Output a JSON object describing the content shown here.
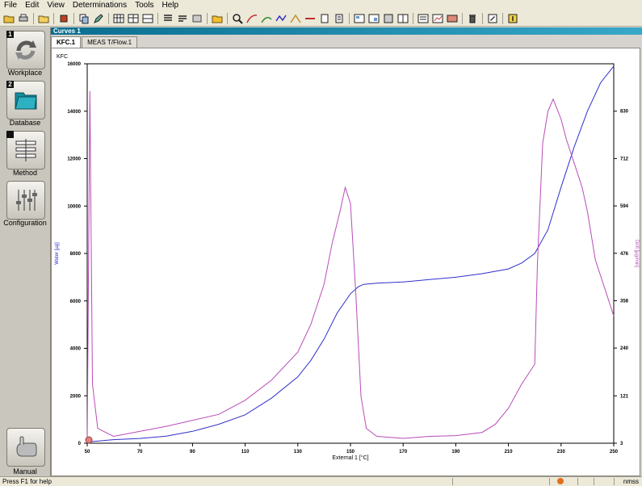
{
  "menu": [
    "File",
    "Edit",
    "View",
    "Determinations",
    "Tools",
    "Help"
  ],
  "sidebar": {
    "items": [
      {
        "num": "1",
        "label": "Workplace",
        "icon": "workplace-arrows-icon"
      },
      {
        "num": "2",
        "label": "Database",
        "icon": "database-folder-icon"
      },
      {
        "num": "",
        "label": "Method",
        "icon": "method-list-icon"
      },
      {
        "num": "",
        "label": "Configuration",
        "icon": "configuration-sliders-icon"
      }
    ],
    "manual_label": "Manual"
  },
  "window": {
    "title": "Curves 1",
    "tabs": [
      "KFC.1",
      "MEAS T/Flow.1"
    ]
  },
  "status": {
    "help": "Press F1 for help",
    "mode": "nmss"
  },
  "colors": {
    "water": "#2f2fcc",
    "drift": "#b84cb8",
    "accent": "#1a88aa"
  },
  "chart_data": {
    "type": "line",
    "title": "KFC",
    "xlabel": "External 1 [°C]",
    "ylabel": "Water [µg]",
    "y2label": "Drift [µg/min]",
    "xlim": [
      50,
      250
    ],
    "ylim": [
      0,
      16000
    ],
    "y2lim": [
      3,
      948
    ],
    "x_ticks": [
      "50",
      "70",
      "90",
      "110",
      "130",
      "150",
      "170",
      "190",
      "210",
      "230",
      "250"
    ],
    "y_ticks": [
      "0",
      "2000",
      "4000",
      "6000",
      "8000",
      "10000",
      "12000",
      "14000",
      "16000"
    ],
    "y2_ticks": [
      "3",
      "121",
      "240",
      "358",
      "476",
      "594",
      "712",
      "830"
    ],
    "series": [
      {
        "name": "Water",
        "axis": "left",
        "x": [
          50,
          60,
          70,
          80,
          90,
          100,
          110,
          120,
          130,
          135,
          140,
          145,
          150,
          153,
          155,
          160,
          170,
          180,
          190,
          200,
          210,
          215,
          220,
          225,
          230,
          235,
          240,
          245,
          250
        ],
        "y": [
          50,
          150,
          200,
          300,
          500,
          800,
          1200,
          1900,
          2800,
          3500,
          4400,
          5500,
          6300,
          6600,
          6700,
          6750,
          6800,
          6900,
          7000,
          7150,
          7350,
          7600,
          8000,
          9000,
          10800,
          12500,
          14000,
          15200,
          15900
        ]
      },
      {
        "name": "Drift",
        "axis": "right",
        "x": [
          50,
          51,
          52,
          54,
          60,
          80,
          100,
          110,
          120,
          130,
          135,
          140,
          143,
          146,
          148,
          150,
          152,
          154,
          156,
          160,
          170,
          180,
          190,
          200,
          205,
          210,
          215,
          218,
          220,
          221,
          223,
          225,
          227,
          230,
          232,
          234,
          236,
          238,
          240,
          243,
          246,
          250
        ],
        "y": [
          5,
          880,
          150,
          40,
          20,
          45,
          75,
          110,
          160,
          230,
          300,
          400,
          500,
          580,
          640,
          600,
          380,
          120,
          40,
          20,
          15,
          20,
          22,
          30,
          50,
          90,
          150,
          180,
          200,
          450,
          750,
          830,
          860,
          810,
          760,
          720,
          680,
          640,
          580,
          460,
          400,
          320
        ]
      }
    ]
  }
}
